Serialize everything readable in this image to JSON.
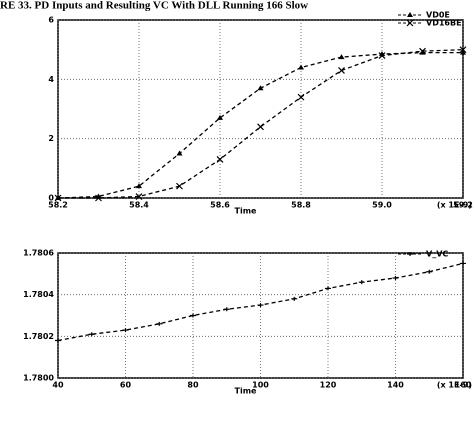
{
  "title": "RE 33. PD Inputs and Resulting VC With DLL Running 166 Slow",
  "chart_data": [
    {
      "type": "line",
      "x_label": "Time",
      "x_unit": "(x 1E-9)",
      "x": [
        58.2,
        58.3,
        58.4,
        58.5,
        58.6,
        58.7,
        58.8,
        58.9,
        59.0,
        59.1,
        59.2
      ],
      "xlim": [
        58.2,
        59.2
      ],
      "xticks": [
        58.2,
        58.4,
        58.6,
        58.8,
        {
          "value": 59.0,
          "label": "59.0"
        },
        59.2
      ],
      "ylim": [
        0,
        6
      ],
      "yticks": [
        0,
        2,
        4,
        6
      ],
      "grid": true,
      "series": [
        {
          "name": "VD0E",
          "color": "#000000",
          "marker": "triangle",
          "dashed": true,
          "values": [
            0,
            0.05,
            0.4,
            1.5,
            2.7,
            3.7,
            4.4,
            4.75,
            4.85,
            4.9,
            4.9
          ]
        },
        {
          "name": "VD16BE",
          "color": "#000000",
          "marker": "x",
          "dashed": true,
          "values": [
            0,
            0,
            0.05,
            0.4,
            1.3,
            2.4,
            3.4,
            4.3,
            4.8,
            4.95,
            5.0
          ]
        }
      ]
    },
    {
      "type": "line",
      "x_label": "Time",
      "x_unit": "(x 1E-9)",
      "x": [
        40,
        50,
        60,
        70,
        80,
        90,
        100,
        110,
        120,
        130,
        140,
        150,
        160
      ],
      "xlim": [
        40,
        160
      ],
      "xticks": [
        40,
        60,
        80,
        100,
        120,
        140,
        160
      ],
      "ylim": [
        1.78,
        1.7806
      ],
      "yticks": [
        {
          "value": 1.78,
          "label": "1.7800"
        },
        {
          "value": 1.7802,
          "label": "1.7802"
        },
        {
          "value": 1.7804,
          "label": "1.7804"
        },
        {
          "value": 1.7806,
          "label": "1.7806"
        }
      ],
      "grid": true,
      "series": [
        {
          "name": "V_VC",
          "color": "#000000",
          "marker": "plus",
          "dashed": true,
          "values": [
            1.78018,
            1.78021,
            1.78023,
            1.78026,
            1.7803,
            1.78033,
            1.78035,
            1.78038,
            1.78043,
            1.78046,
            1.78048,
            1.78051,
            1.78055
          ]
        }
      ]
    }
  ]
}
